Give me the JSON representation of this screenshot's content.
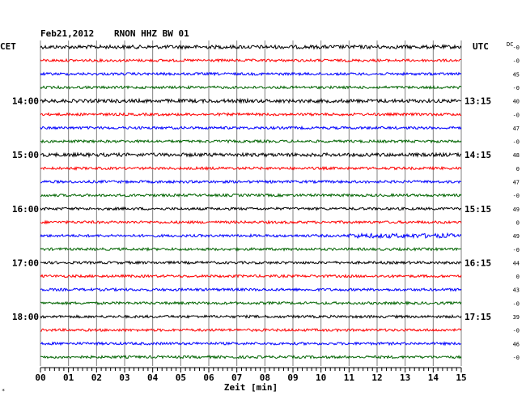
{
  "header": {
    "date": "Feb21,2012",
    "station": "RNON HHZ BW 01",
    "left_tz": "CET",
    "right_tz": "UTC",
    "dc_label": "DC"
  },
  "chart_data": {
    "type": "line",
    "title": "Feb21,2012   RNON HHZ BW 01",
    "xlabel": "Zeit [min]",
    "xlim": [
      0,
      15
    ],
    "x_ticks": [
      "00",
      "01",
      "02",
      "03",
      "04",
      "05",
      "06",
      "07",
      "08",
      "09",
      "10",
      "11",
      "12",
      "13",
      "14",
      "15"
    ],
    "left_hour_labels": [
      "14:00",
      "15:00",
      "16:00",
      "17:00",
      "18:00"
    ],
    "right_hour_labels": [
      "13:15",
      "14:15",
      "15:15",
      "16:15",
      "17:15"
    ],
    "trace_colors": [
      "#000000",
      "#ff0000",
      "#0000ff",
      "#006400"
    ],
    "traces": [
      {
        "dc": "-0",
        "color": "#000000"
      },
      {
        "dc": "-0",
        "color": "#ff0000"
      },
      {
        "dc": "45",
        "color": "#0000ff"
      },
      {
        "dc": "-0",
        "color": "#006400"
      },
      {
        "dc": "40",
        "color": "#000000"
      },
      {
        "dc": "-0",
        "color": "#ff0000"
      },
      {
        "dc": "47",
        "color": "#0000ff"
      },
      {
        "dc": "-0",
        "color": "#006400"
      },
      {
        "dc": "48",
        "color": "#000000"
      },
      {
        "dc": "0",
        "color": "#ff0000"
      },
      {
        "dc": "47",
        "color": "#0000ff"
      },
      {
        "dc": "-0",
        "color": "#006400"
      },
      {
        "dc": "49",
        "color": "#000000"
      },
      {
        "dc": "0",
        "color": "#ff0000"
      },
      {
        "dc": "49",
        "color": "#0000ff"
      },
      {
        "dc": "-0",
        "color": "#006400"
      },
      {
        "dc": "44",
        "color": "#000000"
      },
      {
        "dc": "0",
        "color": "#ff0000"
      },
      {
        "dc": "43",
        "color": "#0000ff"
      },
      {
        "dc": "-0",
        "color": "#006400"
      },
      {
        "dc": "39",
        "color": "#000000"
      },
      {
        "dc": "-0",
        "color": "#ff0000"
      },
      {
        "dc": "46",
        "color": "#0000ff"
      },
      {
        "dc": "-0",
        "color": "#006400"
      }
    ]
  }
}
